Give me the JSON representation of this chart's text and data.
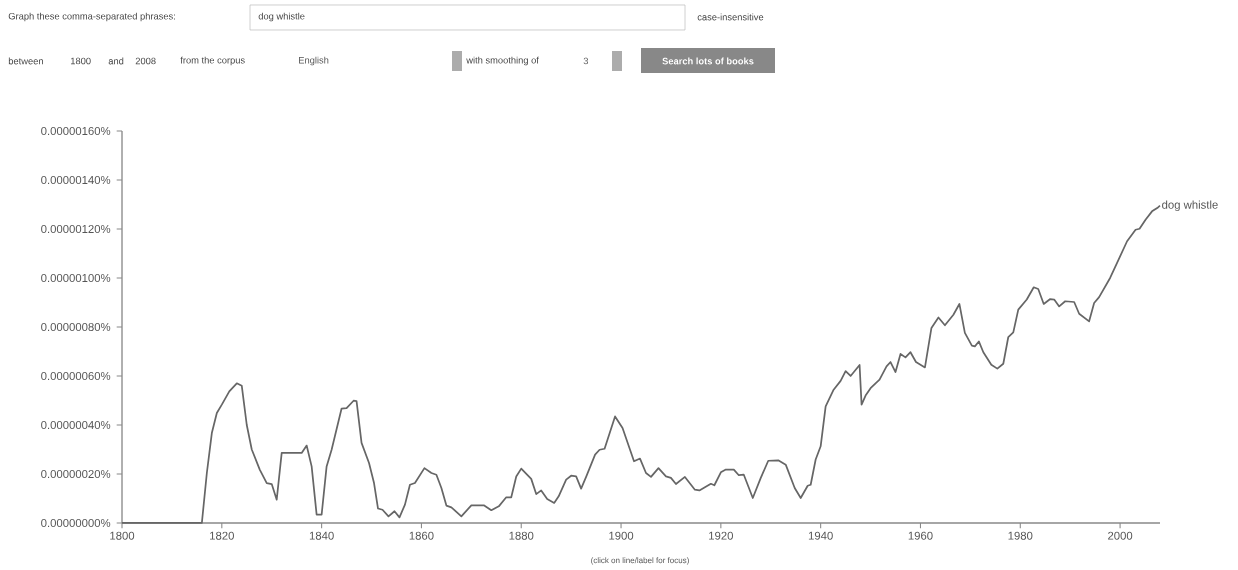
{
  "chart_data": {
    "type": "line",
    "annotations": [
      "Graph these comma-separated phrases:",
      "dog whistle",
      "case-insensitive",
      "between",
      "1800",
      "and",
      "2008",
      "from the corpus",
      "English",
      "with smoothing of",
      "3",
      "Search lots of books",
      "(click on line/label for focus)"
    ],
    "x": [
      1800,
      1816,
      1817,
      1818,
      1819,
      1820,
      1821.5,
      1823,
      1824,
      1825,
      1826,
      1827.6,
      1829,
      1830,
      1831,
      1832,
      1836,
      1837,
      1838,
      1839,
      1840,
      1841,
      1842,
      1844,
      1845,
      1846.4,
      1847,
      1848,
      1849.5,
      1850.5,
      1851.3,
      1852.2,
      1853.4,
      1854.6,
      1855.6,
      1856.7,
      1857.7,
      1858.7,
      1860.6,
      1862,
      1863,
      1864,
      1865,
      1866,
      1868,
      1870,
      1872.5,
      1874,
      1875.5,
      1877,
      1878,
      1879,
      1880,
      1882,
      1883,
      1884,
      1885.2,
      1886.6,
      1887.5,
      1889,
      1890,
      1891,
      1892,
      1893,
      1894.8,
      1895.7,
      1896.7,
      1898.8,
      1900.3,
      1902.6,
      1903.8,
      1905,
      1906,
      1907.5,
      1909,
      1910,
      1911,
      1912.8,
      1914.8,
      1915.7,
      1918,
      1918.7,
      1920,
      1921,
      1922.6,
      1923.6,
      1924.6,
      1926.4,
      1928,
      1929.5,
      1931.5,
      1933,
      1934.8,
      1936,
      1937.4,
      1938,
      1939,
      1940,
      1941,
      1942.6,
      1944,
      1945,
      1946,
      1947.8,
      1948.2,
      1949,
      1950,
      1951,
      1951.8,
      1953.2,
      1954,
      1955,
      1956,
      1957,
      1958,
      1959.1,
      1960.9,
      1962.2,
      1963.6,
      1964.9,
      1966.6,
      1967.8,
      1968.9,
      1970.3,
      1970.9,
      1971.7,
      1972.6,
      1974.2,
      1975.4,
      1976.6,
      1977.6,
      1978.6,
      1979.6,
      1981.3,
      1982.7,
      1983.6,
      1984.7,
      1986,
      1986.8,
      1987.8,
      1989,
      1990.8,
      1991.8,
      1993.8,
      1994.8,
      1995.8,
      1998,
      1999.7,
      2001.4,
      2003.1,
      2003.9,
      2005.1,
      2006.4,
      2007.6,
      2008
    ],
    "series": [
      {
        "name": "dog whistle",
        "color": "#666666",
        "values": [
          0,
          0,
          2.04e-07,
          3.67e-07,
          4.49e-07,
          4.83e-07,
          5.37e-07,
          5.7e-07,
          5.6e-07,
          4e-07,
          3e-07,
          2.18e-07,
          1.63e-07,
          1.59e-07,
          9.5e-08,
          2.86e-07,
          2.86e-07,
          3.16e-07,
          2.31e-07,
          3.4e-08,
          3.4e-08,
          2.31e-07,
          2.99e-07,
          4.67e-07,
          4.69e-07,
          4.99e-07,
          4.97e-07,
          3.27e-07,
          2.45e-07,
          1.63e-07,
          5.9e-08,
          5.4e-08,
          2.7e-08,
          4.8e-08,
          2.3e-08,
          7.5e-08,
          1.56e-07,
          1.63e-07,
          2.24e-07,
          2.04e-07,
          1.97e-07,
          1.43e-07,
          7.1e-08,
          6.4e-08,
          2.7e-08,
          7.2e-08,
          7.2e-08,
          5.2e-08,
          6.8e-08,
          1.05e-07,
          1.05e-07,
          1.9e-07,
          2.22e-07,
          1.8e-07,
          1.18e-07,
          1.33e-07,
          9.8e-08,
          8.2e-08,
          1.09e-07,
          1.77e-07,
          1.93e-07,
          1.9e-07,
          1.4e-07,
          1.88e-07,
          2.79e-07,
          2.99e-07,
          3.03e-07,
          4.35e-07,
          3.88e-07,
          2.52e-07,
          2.63e-07,
          2.04e-07,
          1.88e-07,
          2.24e-07,
          1.9e-07,
          1.84e-07,
          1.59e-07,
          1.88e-07,
          1.36e-07,
          1.33e-07,
          1.6e-07,
          1.54e-07,
          2.07e-07,
          2.18e-07,
          2.18e-07,
          1.95e-07,
          1.97e-07,
          1.02e-07,
          1.84e-07,
          2.54e-07,
          2.56e-07,
          2.38e-07,
          1.43e-07,
          1.02e-07,
          1.52e-07,
          1.56e-07,
          2.59e-07,
          3.13e-07,
          4.76e-07,
          5.44e-07,
          5.8e-07,
          6.2e-07,
          6e-07,
          6.45e-07,
          4.83e-07,
          5.2e-07,
          5.5e-07,
          5.7e-07,
          5.85e-07,
          6.39e-07,
          6.57e-07,
          6.16e-07,
          6.9e-07,
          6.76e-07,
          6.97e-07,
          6.57e-07,
          6.35e-07,
          7.96e-07,
          8.39e-07,
          8.07e-07,
          8.5e-07,
          8.94e-07,
          7.76e-07,
          7.24e-07,
          7.21e-07,
          7.41e-07,
          6.97e-07,
          6.46e-07,
          6.3e-07,
          6.5e-07,
          7.59e-07,
          7.78e-07,
          8.71e-07,
          9.12e-07,
          9.62e-07,
          9.55e-07,
          8.94e-07,
          9.14e-07,
          9.12e-07,
          8.84e-07,
          9.05e-07,
          9.02e-07,
          8.54e-07,
          8.23e-07,
          8.98e-07,
          9.22e-07,
          1e-06,
          1.075e-06,
          1.15e-06,
          1.197e-06,
          1.201e-06,
          1.238e-06,
          1.272e-06,
          1.288e-06,
          1.295e-06
        ]
      }
    ],
    "xlim": [
      1800,
      2008
    ],
    "ylim": [
      0,
      1.6e-06
    ],
    "xticks": [
      1800,
      1820,
      1840,
      1860,
      1880,
      1900,
      1920,
      1940,
      1960,
      1980,
      2000
    ],
    "yticks": [
      {
        "value": 0,
        "label": "0.00000000%"
      },
      {
        "value": 2e-07,
        "label": "0.00000020%"
      },
      {
        "value": 4e-07,
        "label": "0.00000040%"
      },
      {
        "value": 6e-07,
        "label": "0.00000060%"
      },
      {
        "value": 8e-07,
        "label": "0.00000080%"
      },
      {
        "value": 1e-06,
        "label": "0.00000100%"
      },
      {
        "value": 1.2e-06,
        "label": "0.00000120%"
      },
      {
        "value": 1.4e-06,
        "label": "0.00000140%"
      },
      {
        "value": 1.6e-06,
        "label": "0.00000160%"
      }
    ]
  }
}
